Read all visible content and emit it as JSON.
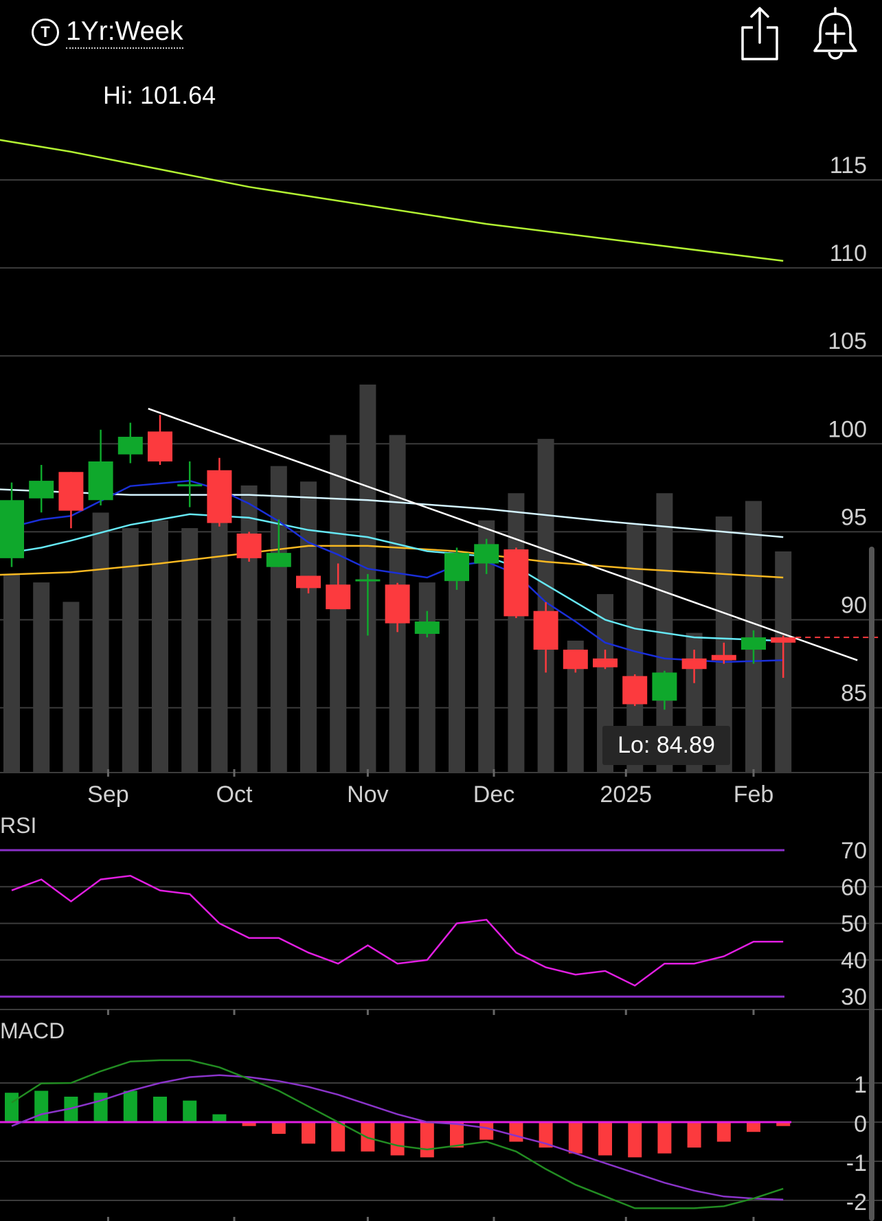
{
  "header": {
    "range_icon": "T",
    "range_label": "1Yr:Week",
    "share_icon": "share-icon",
    "alert_icon": "add-alert-bell-icon"
  },
  "hi_label": "Hi: 101.64",
  "lo_label": "Lo: 84.89",
  "colors": {
    "up": "#0fa82c",
    "down": "#fc3a3e",
    "volume": "#3a3a3a",
    "ma_blue": "#1a2fd8",
    "ma_cyan": "#66e8f5",
    "ma_white": "#d4f4ff",
    "ma_orange": "#f7b822",
    "ma_lime": "#b2f232",
    "rsi": "#e21ee2",
    "rsi_band": "#8a2fc8",
    "macd": "#228c22",
    "signal": "#8a34c9"
  },
  "chart_data": [
    {
      "name": "price",
      "type": "candlestick",
      "x_labels": [
        "Sep",
        "Oct",
        "Nov",
        "Dec",
        "2025",
        "Feb"
      ],
      "x_label_index": [
        3.25,
        7.5,
        12,
        16.25,
        20.7,
        25
      ],
      "y_ticks": [
        115,
        110,
        105,
        100,
        95,
        90,
        85
      ],
      "ylim": [
        81.4,
        125
      ],
      "candles": [
        {
          "o": 93.5,
          "h": 97.8,
          "l": 93.0,
          "c": 96.8
        },
        {
          "o": 96.9,
          "h": 98.8,
          "l": 96.1,
          "c": 97.9
        },
        {
          "o": 98.4,
          "h": 98.4,
          "l": 95.2,
          "c": 96.2
        },
        {
          "o": 96.8,
          "h": 100.8,
          "l": 96.5,
          "c": 99.0
        },
        {
          "o": 99.4,
          "h": 101.2,
          "l": 98.9,
          "c": 100.4
        },
        {
          "o": 100.7,
          "h": 101.64,
          "l": 98.8,
          "c": 99.0
        },
        {
          "o": 97.6,
          "h": 99.0,
          "l": 96.4,
          "c": 97.7
        },
        {
          "o": 98.5,
          "h": 99.2,
          "l": 95.3,
          "c": 95.5
        },
        {
          "o": 94.9,
          "h": 95.0,
          "l": 93.3,
          "c": 93.5
        },
        {
          "o": 93.0,
          "h": 95.7,
          "l": 93.0,
          "c": 93.8
        },
        {
          "o": 92.5,
          "h": 92.5,
          "l": 91.5,
          "c": 91.8
        },
        {
          "o": 92.0,
          "h": 93.2,
          "l": 90.6,
          "c": 90.6
        },
        {
          "o": 92.2,
          "h": 92.6,
          "l": 89.1,
          "c": 92.3
        },
        {
          "o": 92.0,
          "h": 92.1,
          "l": 89.3,
          "c": 89.8
        },
        {
          "o": 89.2,
          "h": 90.5,
          "l": 89.0,
          "c": 89.9
        },
        {
          "o": 92.2,
          "h": 94.1,
          "l": 91.7,
          "c": 93.8
        },
        {
          "o": 93.2,
          "h": 94.6,
          "l": 92.6,
          "c": 94.3
        },
        {
          "o": 94.0,
          "h": 94.1,
          "l": 90.1,
          "c": 90.2
        },
        {
          "o": 90.5,
          "h": 91.0,
          "l": 87.0,
          "c": 88.3
        },
        {
          "o": 88.3,
          "h": 88.3,
          "l": 87.0,
          "c": 87.2
        },
        {
          "o": 87.8,
          "h": 88.3,
          "l": 87.2,
          "c": 87.3
        },
        {
          "o": 86.8,
          "h": 86.9,
          "l": 85.1,
          "c": 85.2
        },
        {
          "o": 85.4,
          "h": 87.1,
          "l": 84.89,
          "c": 87.0
        },
        {
          "o": 87.8,
          "h": 88.3,
          "l": 86.4,
          "c": 87.2
        },
        {
          "o": 88.0,
          "h": 88.7,
          "l": 87.5,
          "c": 87.7
        },
        {
          "o": 88.3,
          "h": 89.4,
          "l": 87.5,
          "c": 89.0
        },
        {
          "o": 89.0,
          "h": 89.1,
          "l": 86.7,
          "c": 88.7
        }
      ],
      "volume": [
        0.51,
        0.49,
        0.44,
        0.67,
        0.63,
        0.65,
        0.63,
        0.69,
        0.74,
        0.79,
        0.75,
        0.87,
        1.0,
        0.87,
        0.49,
        0.57,
        0.65,
        0.72,
        0.86,
        0.34,
        0.46,
        0.64,
        0.72,
        0.36,
        0.66,
        0.7,
        0.57
      ],
      "ma_lines": [
        {
          "key": "ma_lime",
          "points": [
            [
              -3,
              118.0
            ],
            [
              2,
              116.6
            ],
            [
              8,
              114.6
            ],
            [
              16,
              112.5
            ],
            [
              26,
              110.4
            ]
          ]
        },
        {
          "key": "ma_white",
          "points": [
            [
              -3,
              97.6
            ],
            [
              4,
              97.1
            ],
            [
              8,
              97.1
            ],
            [
              12,
              96.8
            ],
            [
              16,
              96.3
            ],
            [
              20,
              95.6
            ],
            [
              26,
              94.7
            ]
          ]
        },
        {
          "key": "ma_orange",
          "points": [
            [
              -3,
              92.4
            ],
            [
              2,
              92.7
            ],
            [
              5,
              93.2
            ],
            [
              8,
              93.8
            ],
            [
              10,
              94.2
            ],
            [
              12,
              94.2
            ],
            [
              15,
              93.9
            ],
            [
              18,
              93.3
            ],
            [
              21,
              92.9
            ],
            [
              26,
              92.4
            ]
          ]
        },
        {
          "key": "ma_cyan",
          "points": [
            [
              -3,
              93.0
            ],
            [
              1,
              94.1
            ],
            [
              2,
              94.5
            ],
            [
              4,
              95.4
            ],
            [
              6,
              96.0
            ],
            [
              8,
              95.8
            ],
            [
              10,
              95.1
            ],
            [
              12,
              94.7
            ],
            [
              14,
              93.9
            ],
            [
              16,
              93.6
            ],
            [
              17,
              93.0
            ],
            [
              18,
              92.0
            ],
            [
              19,
              91.0
            ],
            [
              20,
              90.0
            ],
            [
              21,
              89.5
            ],
            [
              23,
              89.0
            ],
            [
              26,
              88.8
            ]
          ]
        },
        {
          "key": "ma_blue",
          "points": [
            [
              -3,
              94.0
            ],
            [
              1,
              95.7
            ],
            [
              2,
              95.9
            ],
            [
              4,
              97.6
            ],
            [
              6,
              97.9
            ],
            [
              7,
              97.4
            ],
            [
              8,
              96.6
            ],
            [
              9,
              95.6
            ],
            [
              10,
              94.4
            ],
            [
              11,
              93.7
            ],
            [
              12,
              92.9
            ],
            [
              14,
              92.4
            ],
            [
              15,
              93.1
            ],
            [
              16,
              93.3
            ],
            [
              17,
              92.6
            ],
            [
              18,
              91.0
            ],
            [
              19,
              89.9
            ],
            [
              20,
              88.7
            ],
            [
              21,
              88.2
            ],
            [
              22,
              87.8
            ],
            [
              24,
              87.6
            ],
            [
              26,
              87.7
            ]
          ]
        }
      ],
      "trendline": {
        "from": [
          4.6,
          102.0
        ],
        "to": [
          28.5,
          87.7
        ]
      },
      "last_price_line": 89.0
    },
    {
      "name": "RSI",
      "type": "line",
      "title": "RSI",
      "y_ticks": [
        70,
        60,
        50,
        40,
        30
      ],
      "ylim": [
        26,
        73.5
      ],
      "bands": [
        70,
        30
      ],
      "values": [
        59,
        62,
        56,
        62,
        63,
        59,
        58,
        50,
        46,
        46,
        42,
        39,
        44,
        39,
        40,
        50,
        51,
        42,
        38,
        36,
        37,
        33,
        39,
        39,
        41,
        45,
        45
      ]
    },
    {
      "name": "MACD",
      "type": "line",
      "title": "MACD",
      "y_ticks": [
        1,
        0,
        -1,
        -2
      ],
      "ylim": [
        -2.45,
        1.55
      ],
      "macd": [
        0.5,
        0.99,
        1.0,
        1.3,
        1.55,
        1.58,
        1.58,
        1.4,
        1.1,
        0.8,
        0.4,
        0.0,
        -0.4,
        -0.6,
        -0.7,
        -0.6,
        -0.5,
        -0.75,
        -1.2,
        -1.6,
        -1.9,
        -2.2,
        -2.2,
        -2.2,
        -2.15,
        -1.95,
        -1.7
      ],
      "signal": [
        -0.1,
        0.2,
        0.35,
        0.55,
        0.8,
        1.0,
        1.15,
        1.2,
        1.15,
        1.05,
        0.9,
        0.7,
        0.45,
        0.2,
        0.0,
        -0.05,
        -0.15,
        -0.35,
        -0.55,
        -0.8,
        -1.05,
        -1.3,
        -1.55,
        -1.75,
        -1.9,
        -1.95,
        -1.98
      ],
      "histogram": [
        0.75,
        0.8,
        0.65,
        0.75,
        0.8,
        0.65,
        0.55,
        0.2,
        -0.1,
        -0.3,
        -0.55,
        -0.75,
        -0.75,
        -0.85,
        -0.9,
        -0.65,
        -0.45,
        -0.5,
        -0.65,
        -0.8,
        -0.85,
        -0.9,
        -0.8,
        -0.65,
        -0.5,
        -0.25,
        -0.1
      ]
    }
  ]
}
